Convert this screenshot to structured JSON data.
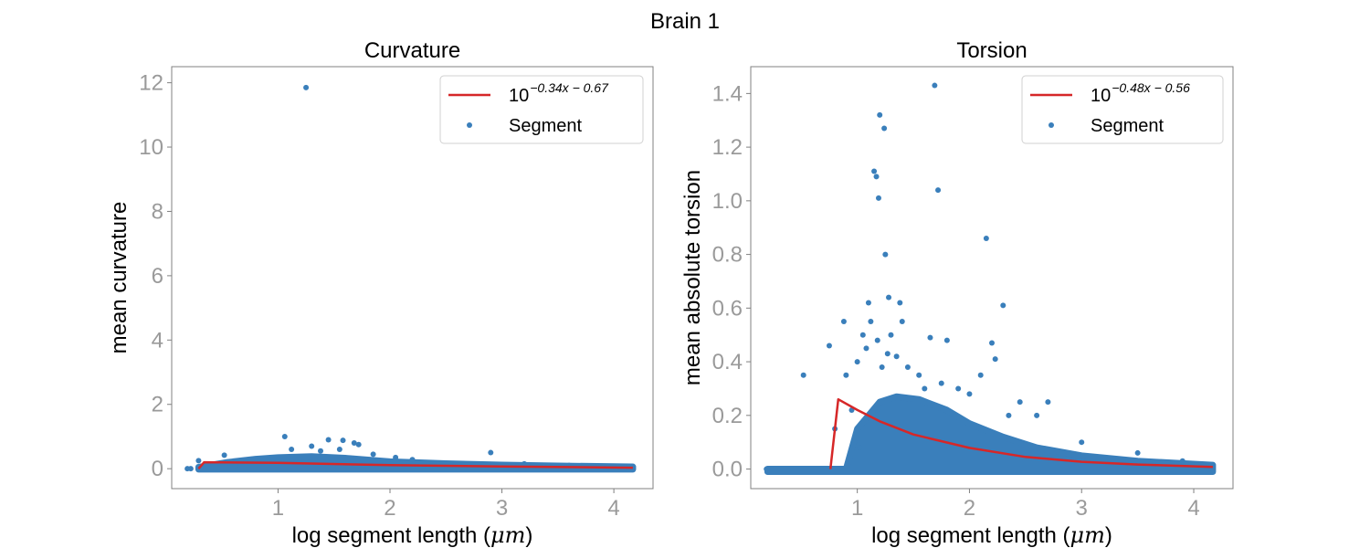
{
  "figure": {
    "title": "Brain 1"
  },
  "chart_data": [
    {
      "type": "scatter",
      "title": "Curvature",
      "xlabel_main": "log segment length (",
      "xlabel_unit": "μm",
      "xlabel_end": ")",
      "ylabel": "mean curvature",
      "xlim": [
        0.05,
        4.35
      ],
      "ylim": [
        -0.62,
        12.5
      ],
      "xticks": [
        {
          "value": 1,
          "label": "1"
        },
        {
          "value": 2,
          "label": "2"
        },
        {
          "value": 3,
          "label": "3"
        },
        {
          "value": 4,
          "label": "4"
        }
      ],
      "yticks": [
        {
          "value": 0,
          "label": "0"
        },
        {
          "value": 2,
          "label": "2"
        },
        {
          "value": 4,
          "label": "4"
        },
        {
          "value": 6,
          "label": "6"
        },
        {
          "value": 8,
          "label": "8"
        },
        {
          "value": 10,
          "label": "10"
        },
        {
          "value": 12,
          "label": "12"
        }
      ],
      "legend": {
        "position": "upper right",
        "fit_base": "10",
        "fit_exponent": "−0.34x − 0.67",
        "scatter_label": "Segment"
      },
      "fit_line": {
        "x": [
          0.29,
          0.34,
          1.0,
          2.0,
          3.0,
          4.17
        ],
        "y": [
          0.0,
          0.2,
          0.18,
          0.11,
          0.07,
          0.03
        ]
      },
      "scatter_band": {
        "lower": [
          [
            0.29,
            -0.02
          ],
          [
            4.17,
            -0.02
          ]
        ],
        "upper": [
          [
            0.29,
            0.05
          ],
          [
            0.55,
            0.2
          ],
          [
            0.8,
            0.3
          ],
          [
            1.0,
            0.35
          ],
          [
            1.3,
            0.38
          ],
          [
            1.6,
            0.33
          ],
          [
            2.0,
            0.22
          ],
          [
            2.5,
            0.16
          ],
          [
            3.0,
            0.12
          ],
          [
            3.5,
            0.09
          ],
          [
            4.17,
            0.06
          ]
        ]
      },
      "scatter_points": [
        [
          0.19,
          0.0
        ],
        [
          0.22,
          0.0
        ],
        [
          0.29,
          0.25
        ],
        [
          0.52,
          0.42
        ],
        [
          0.62,
          0.1
        ],
        [
          1.06,
          1.0
        ],
        [
          1.12,
          0.6
        ],
        [
          1.25,
          11.85
        ],
        [
          1.3,
          0.7
        ],
        [
          1.38,
          0.55
        ],
        [
          1.45,
          0.9
        ],
        [
          1.55,
          0.6
        ],
        [
          1.58,
          0.88
        ],
        [
          1.68,
          0.8
        ],
        [
          1.72,
          0.75
        ],
        [
          1.85,
          0.45
        ],
        [
          2.05,
          0.35
        ],
        [
          2.2,
          0.28
        ],
        [
          2.9,
          0.5
        ],
        [
          3.2,
          0.15
        ],
        [
          3.6,
          0.1
        ],
        [
          4.1,
          0.05
        ],
        [
          4.17,
          0.02
        ]
      ]
    },
    {
      "type": "scatter",
      "title": "Torsion",
      "xlabel_main": "log segment length (",
      "xlabel_unit": "μm",
      "xlabel_end": ")",
      "ylabel": "mean absolute torsion",
      "xlim": [
        0.05,
        4.35
      ],
      "ylim": [
        -0.073,
        1.5
      ],
      "xticks": [
        {
          "value": 1,
          "label": "1"
        },
        {
          "value": 2,
          "label": "2"
        },
        {
          "value": 3,
          "label": "3"
        },
        {
          "value": 4,
          "label": "4"
        }
      ],
      "yticks": [
        {
          "value": 0.0,
          "label": "0.0"
        },
        {
          "value": 0.2,
          "label": "0.2"
        },
        {
          "value": 0.4,
          "label": "0.4"
        },
        {
          "value": 0.6,
          "label": "0.6"
        },
        {
          "value": 0.8,
          "label": "0.8"
        },
        {
          "value": 1.0,
          "label": "1.0"
        },
        {
          "value": 1.2,
          "label": "1.2"
        },
        {
          "value": 1.4,
          "label": "1.4"
        }
      ],
      "legend": {
        "position": "upper right",
        "fit_base": "10",
        "fit_exponent": "−0.48x − 0.56",
        "scatter_label": "Segment"
      },
      "fit_line": {
        "x": [
          0.76,
          0.83,
          1.0,
          1.2,
          1.5,
          2.0,
          2.5,
          3.0,
          3.5,
          4.17
        ],
        "y": [
          0.0,
          0.26,
          0.22,
          0.178,
          0.129,
          0.079,
          0.045,
          0.027,
          0.017,
          0.008
        ]
      },
      "scatter_band": {
        "lower": [
          [
            0.2,
            -0.01
          ],
          [
            4.17,
            -0.01
          ]
        ],
        "upper": [
          [
            0.2,
            0.0
          ],
          [
            0.9,
            0.0
          ],
          [
            1.0,
            0.15
          ],
          [
            1.1,
            0.2
          ],
          [
            1.2,
            0.25
          ],
          [
            1.35,
            0.27
          ],
          [
            1.55,
            0.26
          ],
          [
            1.8,
            0.22
          ],
          [
            2.0,
            0.17
          ],
          [
            2.3,
            0.12
          ],
          [
            2.6,
            0.08
          ],
          [
            3.0,
            0.05
          ],
          [
            3.5,
            0.03
          ],
          [
            4.17,
            0.015
          ]
        ]
      },
      "scatter_points": [
        [
          0.19,
          0.0
        ],
        [
          0.52,
          0.35
        ],
        [
          0.75,
          0.46
        ],
        [
          0.8,
          0.15
        ],
        [
          0.88,
          0.55
        ],
        [
          0.9,
          0.35
        ],
        [
          0.95,
          0.22
        ],
        [
          1.0,
          0.4
        ],
        [
          1.02,
          0.08
        ],
        [
          1.05,
          0.5
        ],
        [
          1.08,
          0.45
        ],
        [
          1.1,
          0.62
        ],
        [
          1.12,
          0.55
        ],
        [
          1.15,
          1.11
        ],
        [
          1.17,
          1.09
        ],
        [
          1.18,
          0.48
        ],
        [
          1.19,
          1.01
        ],
        [
          1.2,
          1.32
        ],
        [
          1.22,
          0.38
        ],
        [
          1.24,
          1.27
        ],
        [
          1.25,
          0.8
        ],
        [
          1.27,
          0.43
        ],
        [
          1.28,
          0.64
        ],
        [
          1.3,
          0.5
        ],
        [
          1.35,
          0.42
        ],
        [
          1.38,
          0.62
        ],
        [
          1.4,
          0.55
        ],
        [
          1.45,
          0.38
        ],
        [
          1.55,
          0.35
        ],
        [
          1.6,
          0.3
        ],
        [
          1.65,
          0.49
        ],
        [
          1.69,
          1.43
        ],
        [
          1.72,
          1.04
        ],
        [
          1.75,
          0.32
        ],
        [
          1.8,
          0.48
        ],
        [
          1.9,
          0.3
        ],
        [
          2.0,
          0.28
        ],
        [
          2.1,
          0.35
        ],
        [
          2.15,
          0.86
        ],
        [
          2.2,
          0.47
        ],
        [
          2.23,
          0.41
        ],
        [
          2.3,
          0.61
        ],
        [
          2.35,
          0.2
        ],
        [
          2.45,
          0.25
        ],
        [
          2.6,
          0.2
        ],
        [
          2.7,
          0.25
        ],
        [
          3.0,
          0.1
        ],
        [
          3.5,
          0.06
        ],
        [
          3.9,
          0.03
        ],
        [
          4.17,
          0.0
        ]
      ]
    }
  ]
}
